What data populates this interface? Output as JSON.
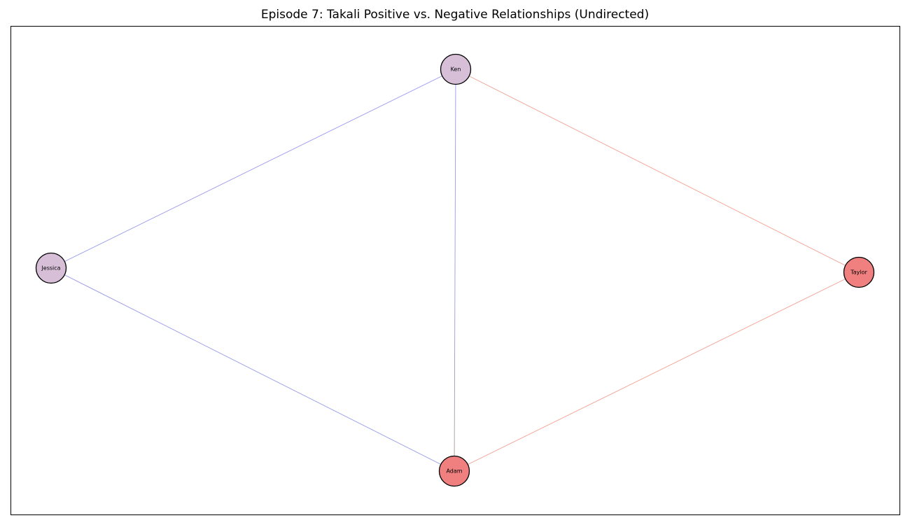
{
  "figure": {
    "title": "Episode 7: Takali Positive vs. Negative Relationships (Undirected)"
  },
  "graph": {
    "directed": false,
    "nodes": [
      {
        "id": "ken",
        "label": "Ken",
        "color": "#d8bfd8"
      },
      {
        "id": "jessica",
        "label": "Jessica",
        "color": "#d8bfd8"
      },
      {
        "id": "taylor",
        "label": "Taylor",
        "color": "#f08080"
      },
      {
        "id": "adam",
        "label": "Adam",
        "color": "#f08080"
      }
    ],
    "edges": [
      {
        "source": "ken",
        "target": "jessica",
        "color": "#9999ee"
      },
      {
        "source": "ken",
        "target": "adam",
        "color": "#9999ee",
        "color_end": "#a89a88"
      },
      {
        "source": "ken",
        "target": "taylor",
        "color": "#f0a090"
      },
      {
        "source": "jessica",
        "target": "adam",
        "color": "#9999ee"
      },
      {
        "source": "adam",
        "target": "taylor",
        "color": "#f0a090"
      }
    ]
  }
}
